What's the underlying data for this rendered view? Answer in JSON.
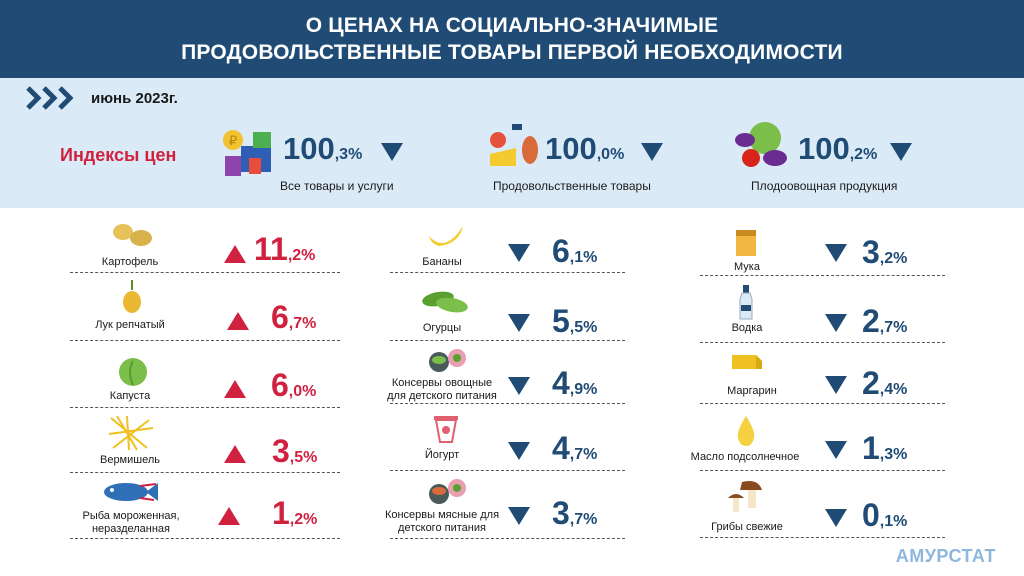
{
  "header": {
    "line1": "О ЦЕНАХ НА СОЦИАЛЬНО-ЗНАЧИМЫЕ",
    "line2": "ПРОДОВОЛЬСТВЕННЫЕ ТОВАРЫ ПЕРВОЙ НЕОБХОДИМОСТИ"
  },
  "period": "июнь 2023г.",
  "indices_title": "Индексы цен",
  "indices": [
    {
      "int": "100",
      "frac": ",3%",
      "label": "Все товары и услуги",
      "direction": "down"
    },
    {
      "int": "100",
      "frac": ",0%",
      "label": "Продовольственные товары",
      "direction": "down"
    },
    {
      "int": "100",
      "frac": ",2%",
      "label": "Плодоовощная продукция",
      "direction": "down"
    }
  ],
  "col1": [
    {
      "label": "Картофель",
      "int": "11",
      "frac": ",2%",
      "direction": "up",
      "icon": "potato-icon"
    },
    {
      "label": "Лук репчатый",
      "int": "6",
      "frac": ",7%",
      "direction": "up",
      "icon": "onion-icon"
    },
    {
      "label": "Капуста",
      "int": "6",
      "frac": ",0%",
      "direction": "up",
      "icon": "cabbage-icon"
    },
    {
      "label": "Вермишель",
      "int": "3",
      "frac": ",5%",
      "direction": "up",
      "icon": "noodles-icon"
    },
    {
      "label": "Рыба мороженная, неразделанная",
      "int": "1",
      "frac": ",2%",
      "direction": "up",
      "icon": "fish-icon"
    }
  ],
  "col2": [
    {
      "label": "Бананы",
      "int": "6",
      "frac": ",1%",
      "direction": "down",
      "icon": "banana-icon"
    },
    {
      "label": "Огурцы",
      "int": "5",
      "frac": ",5%",
      "direction": "down",
      "icon": "cucumber-icon"
    },
    {
      "label": "Консервы овощные для детского питания",
      "int": "4",
      "frac": ",9%",
      "direction": "down",
      "icon": "baby-food-veg-icon"
    },
    {
      "label": "Йогурт",
      "int": "4",
      "frac": ",7%",
      "direction": "down",
      "icon": "yogurt-icon"
    },
    {
      "label": "Консервы мясные для детского питания",
      "int": "3",
      "frac": ",7%",
      "direction": "down",
      "icon": "baby-food-meat-icon"
    }
  ],
  "col3": [
    {
      "label": "Мука",
      "int": "3",
      "frac": ",2%",
      "direction": "down",
      "icon": "flour-icon"
    },
    {
      "label": "Водка",
      "int": "2",
      "frac": ",7%",
      "direction": "down",
      "icon": "vodka-icon"
    },
    {
      "label": "Маргарин",
      "int": "2",
      "frac": ",4%",
      "direction": "down",
      "icon": "margarine-icon"
    },
    {
      "label": "Масло подсолнечное",
      "int": "1",
      "frac": ",3%",
      "direction": "down",
      "icon": "oil-drop-icon"
    },
    {
      "label": "Грибы свежие",
      "int": "0",
      "frac": ",1%",
      "direction": "down",
      "icon": "mushroom-icon"
    }
  ],
  "footer": "АМУРСТАТ",
  "colors": {
    "navy": "#1f4b75",
    "red": "#d0213f",
    "band": "#dbeaf7"
  }
}
